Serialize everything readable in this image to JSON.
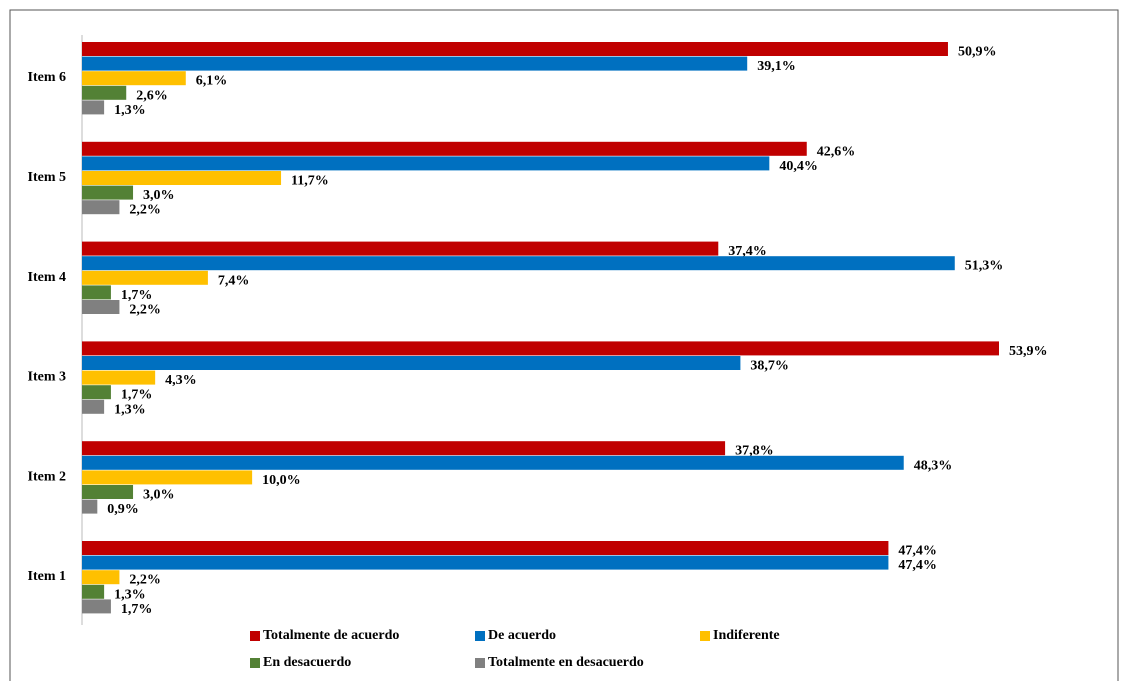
{
  "chart_data": {
    "type": "hbar",
    "categories": [
      "Item 1",
      "Item 2",
      "Item 3",
      "Item 4",
      "Item 5",
      "Item 6"
    ],
    "series": [
      {
        "name": "Totalmente de acuerdo",
        "color": "#c00000",
        "values": [
          47.4,
          37.8,
          53.9,
          37.4,
          42.6,
          50.9
        ],
        "value_labels": [
          "47,4%",
          "37,8%",
          "53,9%",
          "37,4%",
          "42,6%",
          "50,9%"
        ]
      },
      {
        "name": "De acuerdo",
        "color": "#0070c0",
        "values": [
          47.4,
          48.3,
          38.7,
          51.3,
          40.4,
          39.1
        ],
        "value_labels": [
          "47,4%",
          "48,3%",
          "38,7%",
          "51,3%",
          "40,4%",
          "39,1%"
        ]
      },
      {
        "name": "Indiferente",
        "color": "#ffc000",
        "values": [
          2.2,
          10.0,
          4.3,
          7.4,
          11.7,
          6.1
        ],
        "value_labels": [
          "2,2%",
          "10,0%",
          "4,3%",
          "7,4%",
          "11,7%",
          "6,1%"
        ]
      },
      {
        "name": "En desacuerdo",
        "color": "#538135",
        "values": [
          1.3,
          3.0,
          1.7,
          1.7,
          3.0,
          2.6
        ],
        "value_labels": [
          "1,3%",
          "3,0%",
          "1,7%",
          "1,7%",
          "3,0%",
          "2,6%"
        ]
      },
      {
        "name": "Totalmente en desacuerdo",
        "color": "#808080",
        "values": [
          1.7,
          0.9,
          1.3,
          2.2,
          2.2,
          1.3
        ],
        "value_labels": [
          "1,7%",
          "0,9%",
          "1,3%",
          "2,2%",
          "2,2%",
          "1,3%"
        ]
      }
    ],
    "legend": "bottom"
  }
}
